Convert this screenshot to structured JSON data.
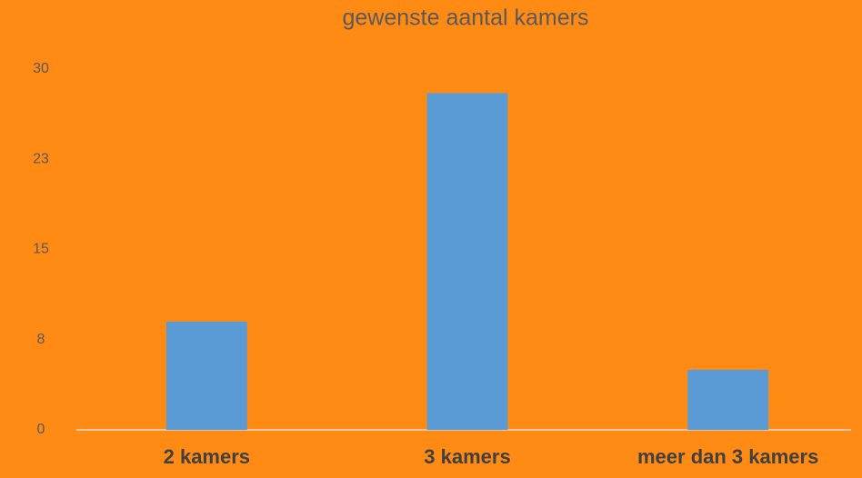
{
  "chart_data": {
    "type": "bar",
    "title": "gewenste aantal kamers",
    "categories": [
      "2 kamers",
      "3 kamers",
      "meer dan 3 kamers"
    ],
    "values": [
      9,
      28,
      5
    ],
    "color": "#5b9bd5",
    "ylim": [
      0,
      30
    ],
    "yticks": [
      0,
      {
        "value": 7.5,
        "label": "8"
      },
      15,
      {
        "value": 22.5,
        "label": "23"
      },
      30
    ],
    "grid": false
  }
}
